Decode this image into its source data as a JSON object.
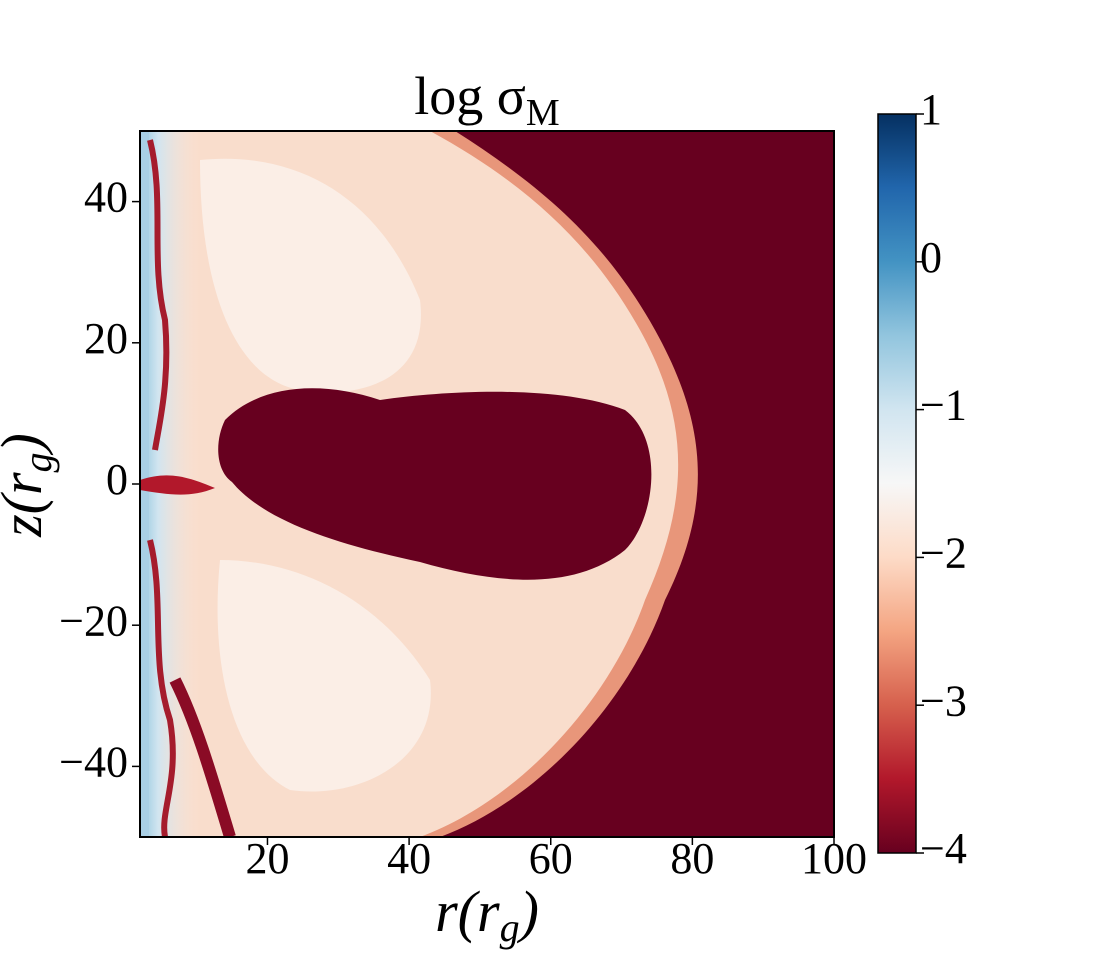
{
  "chart_data": {
    "type": "heatmap",
    "title": {
      "base": "log σ",
      "subscript": "M"
    },
    "xlabel": {
      "base": "r(r",
      "subscript": "g",
      "end": ")"
    },
    "ylabel": {
      "base": "z(r",
      "subscript": "g",
      "end": ")"
    },
    "xlim": [
      2,
      100
    ],
    "xticks": [
      20,
      40,
      60,
      80,
      100
    ],
    "ylim": [
      -50,
      50
    ],
    "yticks": [
      {
        "value": -40,
        "label": "−40"
      },
      {
        "value": -20,
        "label": "−20"
      },
      0,
      20,
      40
    ],
    "clim": [
      -4,
      1
    ],
    "cticks": [
      {
        "value": -4,
        "label": "−4"
      },
      {
        "value": -3,
        "label": "−3"
      },
      {
        "value": -2,
        "label": "−2"
      },
      {
        "value": -1,
        "label": "−1"
      },
      0,
      1
    ],
    "colormap": [
      "#67001f",
      "#b2182b",
      "#d6604d",
      "#f4a582",
      "#fddbc7",
      "#f7f7f7",
      "#d1e5f0",
      "#92c5de",
      "#4393c3",
      "#2166ac",
      "#053061"
    ]
  }
}
